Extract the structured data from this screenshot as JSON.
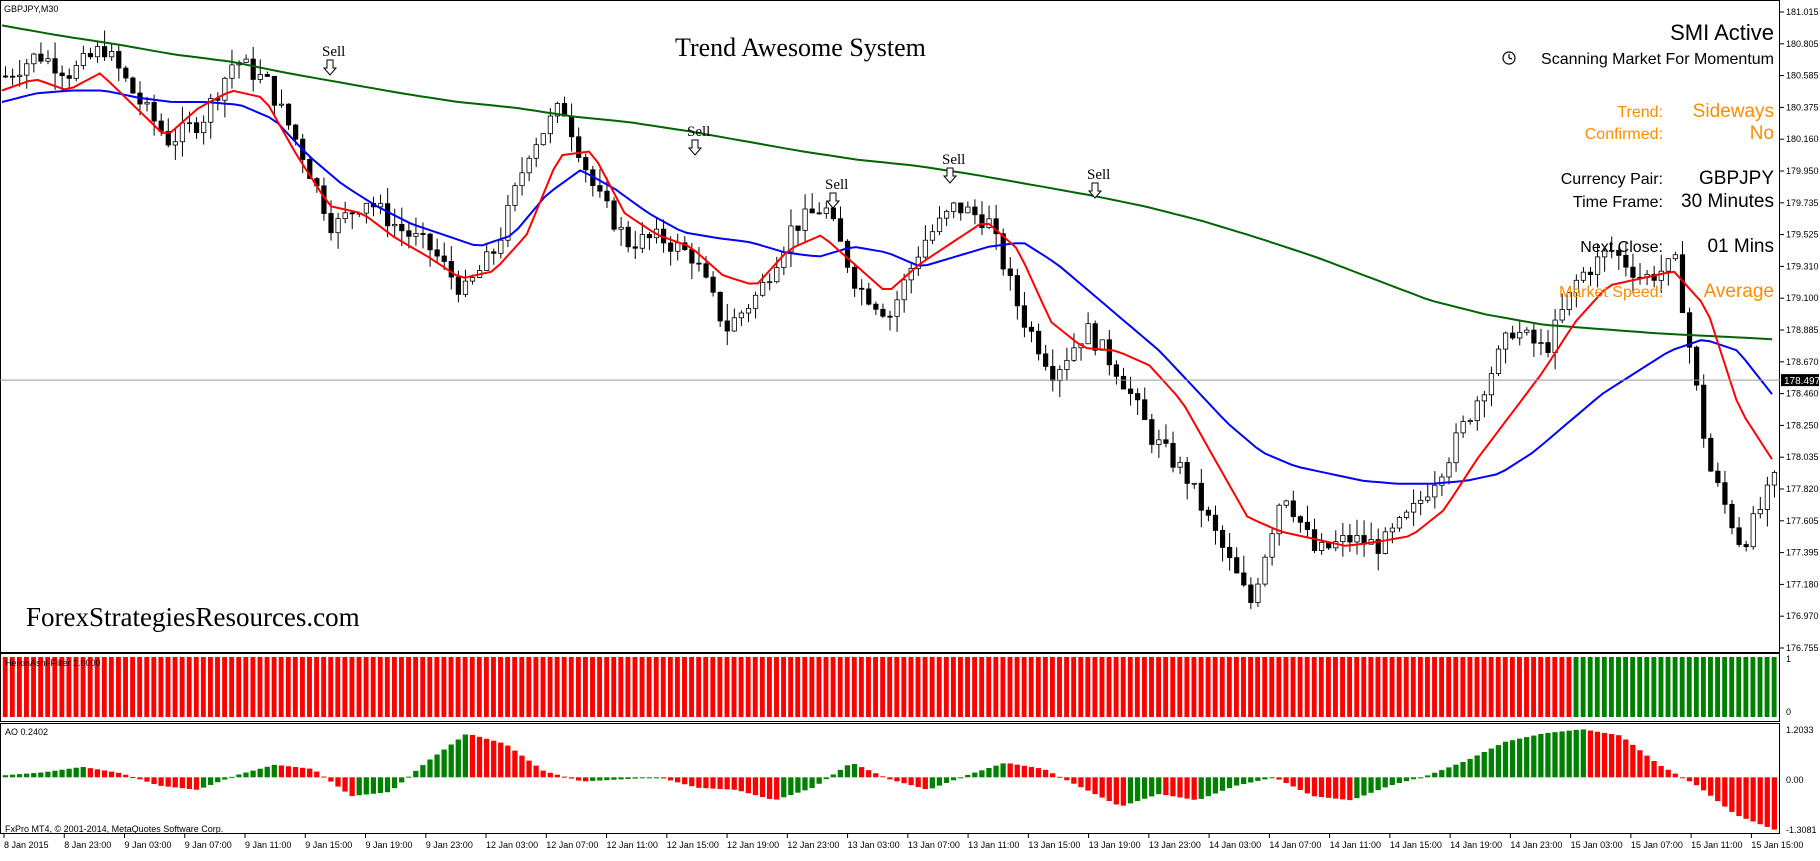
{
  "window": {
    "symbol_label": "GBPJPY,M30",
    "copyright": "FxPro MT4, © 2001-2014, MetaQuotes Software Corp."
  },
  "overlay": {
    "title": "Trend Awesome System",
    "watermark": "ForexStrategiesResources.com",
    "smi_title": "SMI Active",
    "smi_subtitle": "Scanning Market For Momentum",
    "trend_label": "Trend:",
    "trend_value": "Sideways",
    "confirmed_label": "Confirmed:",
    "confirmed_value": "No",
    "pair_label": "Currency Pair:",
    "pair_value": "GBPJPY",
    "timeframe_label": "Time Frame:",
    "timeframe_value": "30 Minutes",
    "next_close_label": "Next Close:",
    "next_close_value": "01 Mins",
    "speed_label": "Market Speed:",
    "speed_value": "Average"
  },
  "colors": {
    "bull_candle": "#ffffff",
    "bear_candle": "#000000",
    "ma_fast": "#ff0000",
    "ma_mid": "#0000ff",
    "ma_slow": "#006400",
    "histo_red": "#ff0000",
    "histo_green": "#008000",
    "accent_orange": "#ff8c00"
  },
  "chart_data": [
    {
      "type": "candlestick",
      "title": "GBPJPY,M30",
      "ylim": [
        176.755,
        181.015
      ],
      "y_ticks": [
        "181.015",
        "180.805",
        "180.585",
        "180.375",
        "180.160",
        "179.950",
        "179.735",
        "179.525",
        "179.310",
        "179.100",
        "178.885",
        "178.670",
        "178.460",
        "178.250",
        "178.035",
        "177.820",
        "177.605",
        "177.395",
        "177.180",
        "176.970",
        "176.755"
      ],
      "current_price": "178.497",
      "x_labels": [
        "8 Jan 2015",
        "8 Jan 23:00",
        "9 Jan 03:00",
        "9 Jan 07:00",
        "9 Jan 11:00",
        "9 Jan 15:00",
        "9 Jan 19:00",
        "9 Jan 23:00",
        "12 Jan 03:00",
        "12 Jan 07:00",
        "12 Jan 11:00",
        "12 Jan 15:00",
        "12 Jan 19:00",
        "12 Jan 23:00",
        "13 Jan 03:00",
        "13 Jan 07:00",
        "13 Jan 11:00",
        "13 Jan 15:00",
        "13 Jan 19:00",
        "13 Jan 23:00",
        "14 Jan 03:00",
        "14 Jan 07:00",
        "14 Jan 11:00",
        "14 Jan 15:00",
        "14 Jan 19:00",
        "14 Jan 23:00",
        "15 Jan 03:00",
        "15 Jan 07:00",
        "15 Jan 11:00",
        "15 Jan 15:00"
      ],
      "close_path": [
        180.6,
        180.75,
        180.62,
        180.8,
        180.45,
        180.15,
        180.3,
        180.72,
        180.55,
        180.1,
        179.55,
        179.75,
        179.55,
        179.4,
        179.1,
        179.42,
        180.1,
        180.4,
        179.8,
        179.45,
        179.48,
        179.35,
        178.85,
        179.1,
        179.55,
        179.7,
        179.15,
        178.95,
        179.45,
        179.7,
        179.6,
        178.95,
        178.55,
        178.85,
        178.55,
        178.1,
        177.85,
        177.4,
        176.95,
        177.75,
        177.3,
        177.4,
        177.35,
        177.6,
        177.95,
        178.4,
        178.85,
        178.7,
        179.2,
        179.4,
        179.2,
        179.3,
        177.9,
        177.35,
        177.8
      ],
      "ma_fast": [
        180.5,
        180.58,
        180.5,
        180.62,
        180.4,
        180.18,
        180.38,
        180.5,
        180.45,
        180.05,
        179.7,
        179.65,
        179.48,
        179.35,
        179.2,
        179.25,
        179.5,
        180.05,
        180.08,
        179.65,
        179.5,
        179.42,
        179.22,
        179.15,
        179.4,
        179.5,
        179.3,
        179.1,
        179.3,
        179.45,
        179.6,
        179.4,
        178.9,
        178.72,
        178.7,
        178.6,
        178.35,
        177.95,
        177.55,
        177.45,
        177.4,
        177.35,
        177.38,
        177.42,
        177.6,
        177.95,
        178.25,
        178.55,
        178.9,
        179.15,
        179.2,
        179.25,
        179.0,
        178.3,
        177.95
      ],
      "ma_mid": [
        180.42,
        180.48,
        180.5,
        180.5,
        180.45,
        180.42,
        180.42,
        180.4,
        180.3,
        180.05,
        179.85,
        179.7,
        179.58,
        179.5,
        179.42,
        179.5,
        179.78,
        179.95,
        179.82,
        179.65,
        179.52,
        179.48,
        179.45,
        179.38,
        179.35,
        179.42,
        179.38,
        179.28,
        179.35,
        179.42,
        179.45,
        179.3,
        179.1,
        178.9,
        178.7,
        178.45,
        178.2,
        178.0,
        177.9,
        177.85,
        177.8,
        177.78,
        177.78,
        177.8,
        177.85,
        178.0,
        178.2,
        178.4,
        178.55,
        178.7,
        178.78,
        178.7,
        178.4
      ],
      "ma_slow": [
        180.95,
        180.88,
        180.82,
        180.75,
        180.7,
        180.62,
        180.55,
        180.48,
        180.42,
        180.38,
        180.32,
        180.28,
        180.22,
        180.15,
        180.08,
        180.02,
        179.98,
        179.92,
        179.85,
        179.78,
        179.7,
        179.6,
        179.48,
        179.35,
        179.2,
        179.05,
        178.95,
        178.88,
        178.85,
        178.82,
        178.8,
        178.78
      ]
    },
    {
      "type": "bar",
      "title": "HeikinAshi-Filter 1.0000",
      "ylim": [
        0,
        1
      ],
      "y_ticks": [
        "1",
        "0"
      ],
      "bars_red_count": 222,
      "bars_green_count": 29
    },
    {
      "type": "bar",
      "title": "AO 0.2402",
      "ylim": [
        -1.3081,
        1.2033
      ],
      "y_ticks": [
        "1.2033",
        "0.00",
        "-1.3081"
      ],
      "values_keyframes": [
        0.05,
        0.12,
        0.25,
        0.1,
        -0.2,
        -0.3,
        0.05,
        0.3,
        0.2,
        -0.45,
        -0.35,
        0.4,
        1.05,
        0.8,
        0.15,
        -0.1,
        -0.05,
        0.0,
        -0.25,
        -0.3,
        -0.55,
        -0.25,
        0.35,
        -0.05,
        -0.3,
        0.05,
        0.35,
        0.2,
        -0.25,
        -0.7,
        -0.4,
        -0.55,
        -0.2,
        0.0,
        -0.45,
        -0.55,
        -0.2,
        0.05,
        0.4,
        0.85,
        1.05,
        1.15,
        1.0,
        0.3,
        -0.2,
        -0.9,
        -1.25
      ]
    }
  ]
}
